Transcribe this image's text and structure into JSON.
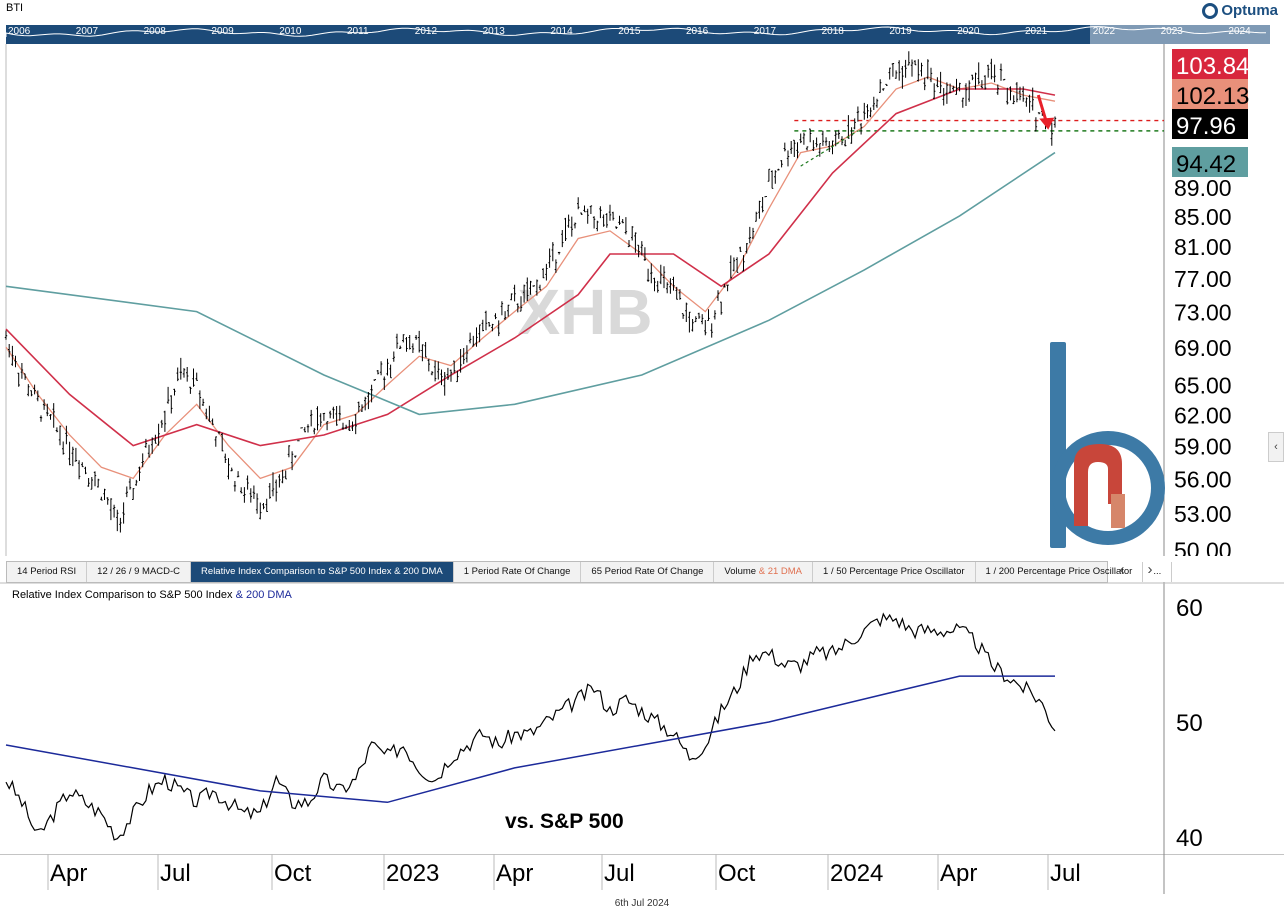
{
  "header": {
    "symbol": "BTI",
    "brand": "Optuma"
  },
  "overview": {
    "years": [
      "2006",
      "2007",
      "2008",
      "2009",
      "2010",
      "2011",
      "2012",
      "2013",
      "2014",
      "2015",
      "2016",
      "2017",
      "2018",
      "2019",
      "2020",
      "2021",
      "2022",
      "2023",
      "2024"
    ]
  },
  "watermark": "XHB",
  "tabs": [
    {
      "label": "14 Period RSI"
    },
    {
      "label": "12 / 26 / 9 MACD-C"
    },
    {
      "label": "Relative Index Comparison to S&P 500 Index & 200 DMA",
      "active": true
    },
    {
      "label": "1 Period Rate Of Change"
    },
    {
      "label": "65 Period Rate Of Change"
    },
    {
      "label": "Volume",
      "accent": "& 21 DMA"
    },
    {
      "label": "1 / 50 Percentage Price Oscillator"
    },
    {
      "label": "1 / 200 Percentage Price Oscillator"
    },
    {
      "label": "..."
    }
  ],
  "tab_nav": {
    "prev": "‹",
    "next": "›"
  },
  "lower_panel": {
    "title": "Relative Index Comparison to S&P 500 Index",
    "title_dma": "& 200 DMA",
    "annotation": "vs. S&P 500"
  },
  "footer_date": "6th Jul 2024",
  "colors": {
    "price": "#000000",
    "ma21": "#e8907a",
    "ma50": "#d0304a",
    "ma200": "#5f9ea0",
    "rel200": "#1c2a9a",
    "resistance": "#dd1c1c",
    "support": "#1e7a1e",
    "arrow": "#e8202a"
  },
  "chart_data": [
    {
      "type": "line",
      "title": "",
      "xlabel": "",
      "ylabel": "",
      "x_ticks": [
        "Apr",
        "Jul",
        "Oct",
        "2023",
        "Apr",
        "Jul",
        "Oct",
        "2024",
        "Apr",
        "Jul"
      ],
      "y_ticks": [
        "50.00",
        "53.00",
        "56.00",
        "59.00",
        "62.00",
        "65.00",
        "69.00",
        "73.00",
        "77.00",
        "81.00",
        "85.00",
        "89.00"
      ],
      "ylim": [
        49.5,
        111
      ],
      "y_scale": "log",
      "price_labels": [
        {
          "value": "103.84",
          "bg": "#d8263c",
          "fg": "#ffffff"
        },
        {
          "value": "102.13",
          "bg": "#e8907a",
          "fg": "#000000"
        },
        {
          "value": "97.96",
          "bg": "#000000",
          "fg": "#ffffff"
        },
        {
          "value": "94.42",
          "bg": "#5f9ea0",
          "fg": "#000000"
        }
      ],
      "horizontal_lines": [
        {
          "value": 98.9,
          "color": "#dd1c1c"
        },
        {
          "value": 97.3,
          "color": "#1e7a1e"
        }
      ],
      "price_series": [
        [
          0,
          70
        ],
        [
          5,
          66
        ],
        [
          10,
          63
        ],
        [
          15,
          61
        ],
        [
          20,
          59
        ],
        [
          25,
          57
        ],
        [
          30,
          55
        ],
        [
          35,
          52
        ],
        [
          40,
          55
        ],
        [
          45,
          59
        ],
        [
          50,
          62
        ],
        [
          55,
          66
        ],
        [
          60,
          65
        ],
        [
          65,
          61
        ],
        [
          70,
          57
        ],
        [
          75,
          55
        ],
        [
          80,
          54
        ],
        [
          85,
          55
        ],
        [
          90,
          58
        ],
        [
          95,
          61
        ],
        [
          100,
          62
        ],
        [
          105,
          61
        ],
        [
          110,
          62
        ],
        [
          115,
          64
        ],
        [
          120,
          67
        ],
        [
          125,
          70
        ],
        [
          130,
          69
        ],
        [
          135,
          66
        ],
        [
          140,
          66
        ],
        [
          145,
          69
        ],
        [
          150,
          71
        ],
        [
          155,
          72
        ],
        [
          160,
          74
        ],
        [
          165,
          75
        ],
        [
          170,
          78
        ],
        [
          175,
          82
        ],
        [
          180,
          85
        ],
        [
          185,
          85
        ],
        [
          190,
          84
        ],
        [
          195,
          83
        ],
        [
          200,
          80
        ],
        [
          205,
          77
        ],
        [
          210,
          75
        ],
        [
          215,
          72
        ],
        [
          220,
          71
        ],
        [
          225,
          75
        ],
        [
          230,
          79
        ],
        [
          235,
          83
        ],
        [
          240,
          89
        ],
        [
          245,
          94
        ],
        [
          250,
          96
        ],
        [
          255,
          95
        ],
        [
          260,
          95
        ],
        [
          265,
          97
        ],
        [
          270,
          100
        ],
        [
          275,
          104
        ],
        [
          280,
          107
        ],
        [
          285,
          108
        ],
        [
          290,
          106
        ],
        [
          295,
          104
        ],
        [
          300,
          103
        ],
        [
          305,
          105
        ],
        [
          310,
          106
        ],
        [
          315,
          104
        ],
        [
          320,
          102
        ],
        [
          325,
          100
        ],
        [
          330,
          98
        ]
      ],
      "series": [
        {
          "name": "21 DMA",
          "values": [
            [
              0,
              69
            ],
            [
              10,
              64
            ],
            [
              20,
              60
            ],
            [
              30,
              57
            ],
            [
              40,
              56
            ],
            [
              50,
              60
            ],
            [
              60,
              63
            ],
            [
              70,
              59
            ],
            [
              80,
              56
            ],
            [
              90,
              57
            ],
            [
              100,
              61
            ],
            [
              110,
              62
            ],
            [
              120,
              65
            ],
            [
              130,
              68
            ],
            [
              140,
              67
            ],
            [
              150,
              70
            ],
            [
              160,
              73
            ],
            [
              170,
              76
            ],
            [
              180,
              82
            ],
            [
              190,
              83
            ],
            [
              200,
              80
            ],
            [
              210,
              76
            ],
            [
              220,
              73
            ],
            [
              230,
              78
            ],
            [
              240,
              86
            ],
            [
              250,
              94
            ],
            [
              260,
              95
            ],
            [
              270,
              98
            ],
            [
              280,
              104
            ],
            [
              290,
              106
            ],
            [
              300,
              104
            ],
            [
              310,
              105
            ],
            [
              320,
              103
            ],
            [
              330,
              102
            ]
          ]
        },
        {
          "name": "50 DMA",
          "values": [
            [
              0,
              71
            ],
            [
              20,
              64
            ],
            [
              40,
              59
            ],
            [
              60,
              61
            ],
            [
              80,
              59
            ],
            [
              100,
              60
            ],
            [
              120,
              62
            ],
            [
              140,
              66
            ],
            [
              160,
              70
            ],
            [
              180,
              75
            ],
            [
              190,
              80
            ],
            [
              210,
              80
            ],
            [
              225,
              76
            ],
            [
              240,
              80
            ],
            [
              260,
              91
            ],
            [
              280,
              100
            ],
            [
              300,
              104
            ],
            [
              320,
              104
            ],
            [
              330,
              103
            ]
          ]
        },
        {
          "name": "200 DMA",
          "values": [
            [
              0,
              76
            ],
            [
              60,
              73
            ],
            [
              100,
              66
            ],
            [
              130,
              62
            ],
            [
              160,
              63
            ],
            [
              200,
              66
            ],
            [
              240,
              72
            ],
            [
              270,
              78
            ],
            [
              300,
              85
            ],
            [
              330,
              94
            ]
          ]
        }
      ]
    },
    {
      "type": "line",
      "title": "Relative Index Comparison to S&P 500 Index",
      "y_ticks": [
        "40",
        "50",
        "60"
      ],
      "ylim": [
        38.5,
        61.5
      ],
      "series": [
        {
          "name": "",
          "values": [
            [
              0,
              45
            ],
            [
              5,
              43
            ],
            [
              10,
              40
            ],
            [
              15,
              42
            ],
            [
              20,
              44
            ],
            [
              25,
              43
            ],
            [
              30,
              42
            ],
            [
              35,
              40
            ],
            [
              40,
              42
            ],
            [
              45,
              44
            ],
            [
              50,
              45
            ],
            [
              55,
              44
            ],
            [
              60,
              43
            ],
            [
              65,
              44
            ],
            [
              70,
              43
            ],
            [
              75,
              42
            ],
            [
              80,
              42
            ],
            [
              85,
              45
            ],
            [
              90,
              43
            ],
            [
              95,
              43
            ],
            [
              100,
              45
            ],
            [
              105,
              44
            ],
            [
              110,
              45
            ],
            [
              115,
              48
            ],
            [
              120,
              47
            ],
            [
              125,
              48
            ],
            [
              130,
              46
            ],
            [
              135,
              45
            ],
            [
              140,
              47
            ],
            [
              145,
              48
            ],
            [
              150,
              49
            ],
            [
              155,
              48
            ],
            [
              160,
              49
            ],
            [
              165,
              49
            ],
            [
              170,
              50
            ],
            [
              175,
              51
            ],
            [
              180,
              52
            ],
            [
              185,
              53
            ],
            [
              190,
              51
            ],
            [
              195,
              52
            ],
            [
              200,
              51
            ],
            [
              205,
              50
            ],
            [
              210,
              49
            ],
            [
              215,
              47
            ],
            [
              220,
              48
            ],
            [
              225,
              51
            ],
            [
              230,
              53
            ],
            [
              235,
              56
            ],
            [
              240,
              56
            ],
            [
              245,
              55
            ],
            [
              250,
              55
            ],
            [
              255,
              56
            ],
            [
              260,
              56
            ],
            [
              265,
              57
            ],
            [
              270,
              58
            ],
            [
              275,
              59
            ],
            [
              280,
              59
            ],
            [
              285,
              58
            ],
            [
              290,
              58
            ],
            [
              295,
              58
            ],
            [
              300,
              58
            ],
            [
              305,
              57
            ],
            [
              310,
              55
            ],
            [
              315,
              54
            ],
            [
              320,
              53
            ],
            [
              325,
              52
            ],
            [
              330,
              49.5
            ]
          ]
        },
        {
          "name": "200 DMA",
          "values": [
            [
              0,
              48
            ],
            [
              40,
              46
            ],
            [
              80,
              44
            ],
            [
              120,
              43
            ],
            [
              160,
              46
            ],
            [
              200,
              48
            ],
            [
              240,
              50
            ],
            [
              270,
              52
            ],
            [
              300,
              54
            ],
            [
              330,
              54
            ]
          ]
        }
      ]
    }
  ]
}
